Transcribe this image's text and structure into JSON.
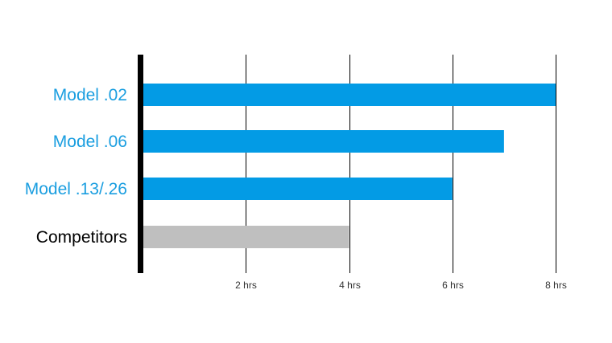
{
  "chart_data": {
    "type": "bar",
    "orientation": "horizontal",
    "categories": [
      "Model .02",
      "Model .06",
      "Model .13/.26",
      "Competitors"
    ],
    "values": [
      8,
      7,
      6,
      4
    ],
    "x_ticks": [
      {
        "value": 2,
        "label": "2 hrs"
      },
      {
        "value": 4,
        "label": "4 hrs"
      },
      {
        "value": 6,
        "label": "6 hrs"
      },
      {
        "value": 8,
        "label": "8 hrs"
      }
    ],
    "xlim": [
      0,
      8
    ],
    "title": "",
    "xlabel": "",
    "ylabel": "",
    "grid": "vertical",
    "colors": {
      "highlight_bar": "#039BE5",
      "highlight_label": "#1A9EE0",
      "competitor_bar": "#BFBFBF",
      "competitor_label": "#000000",
      "axis": "#000000",
      "grid": "#000000"
    },
    "highlighted": [
      true,
      true,
      true,
      false
    ]
  }
}
